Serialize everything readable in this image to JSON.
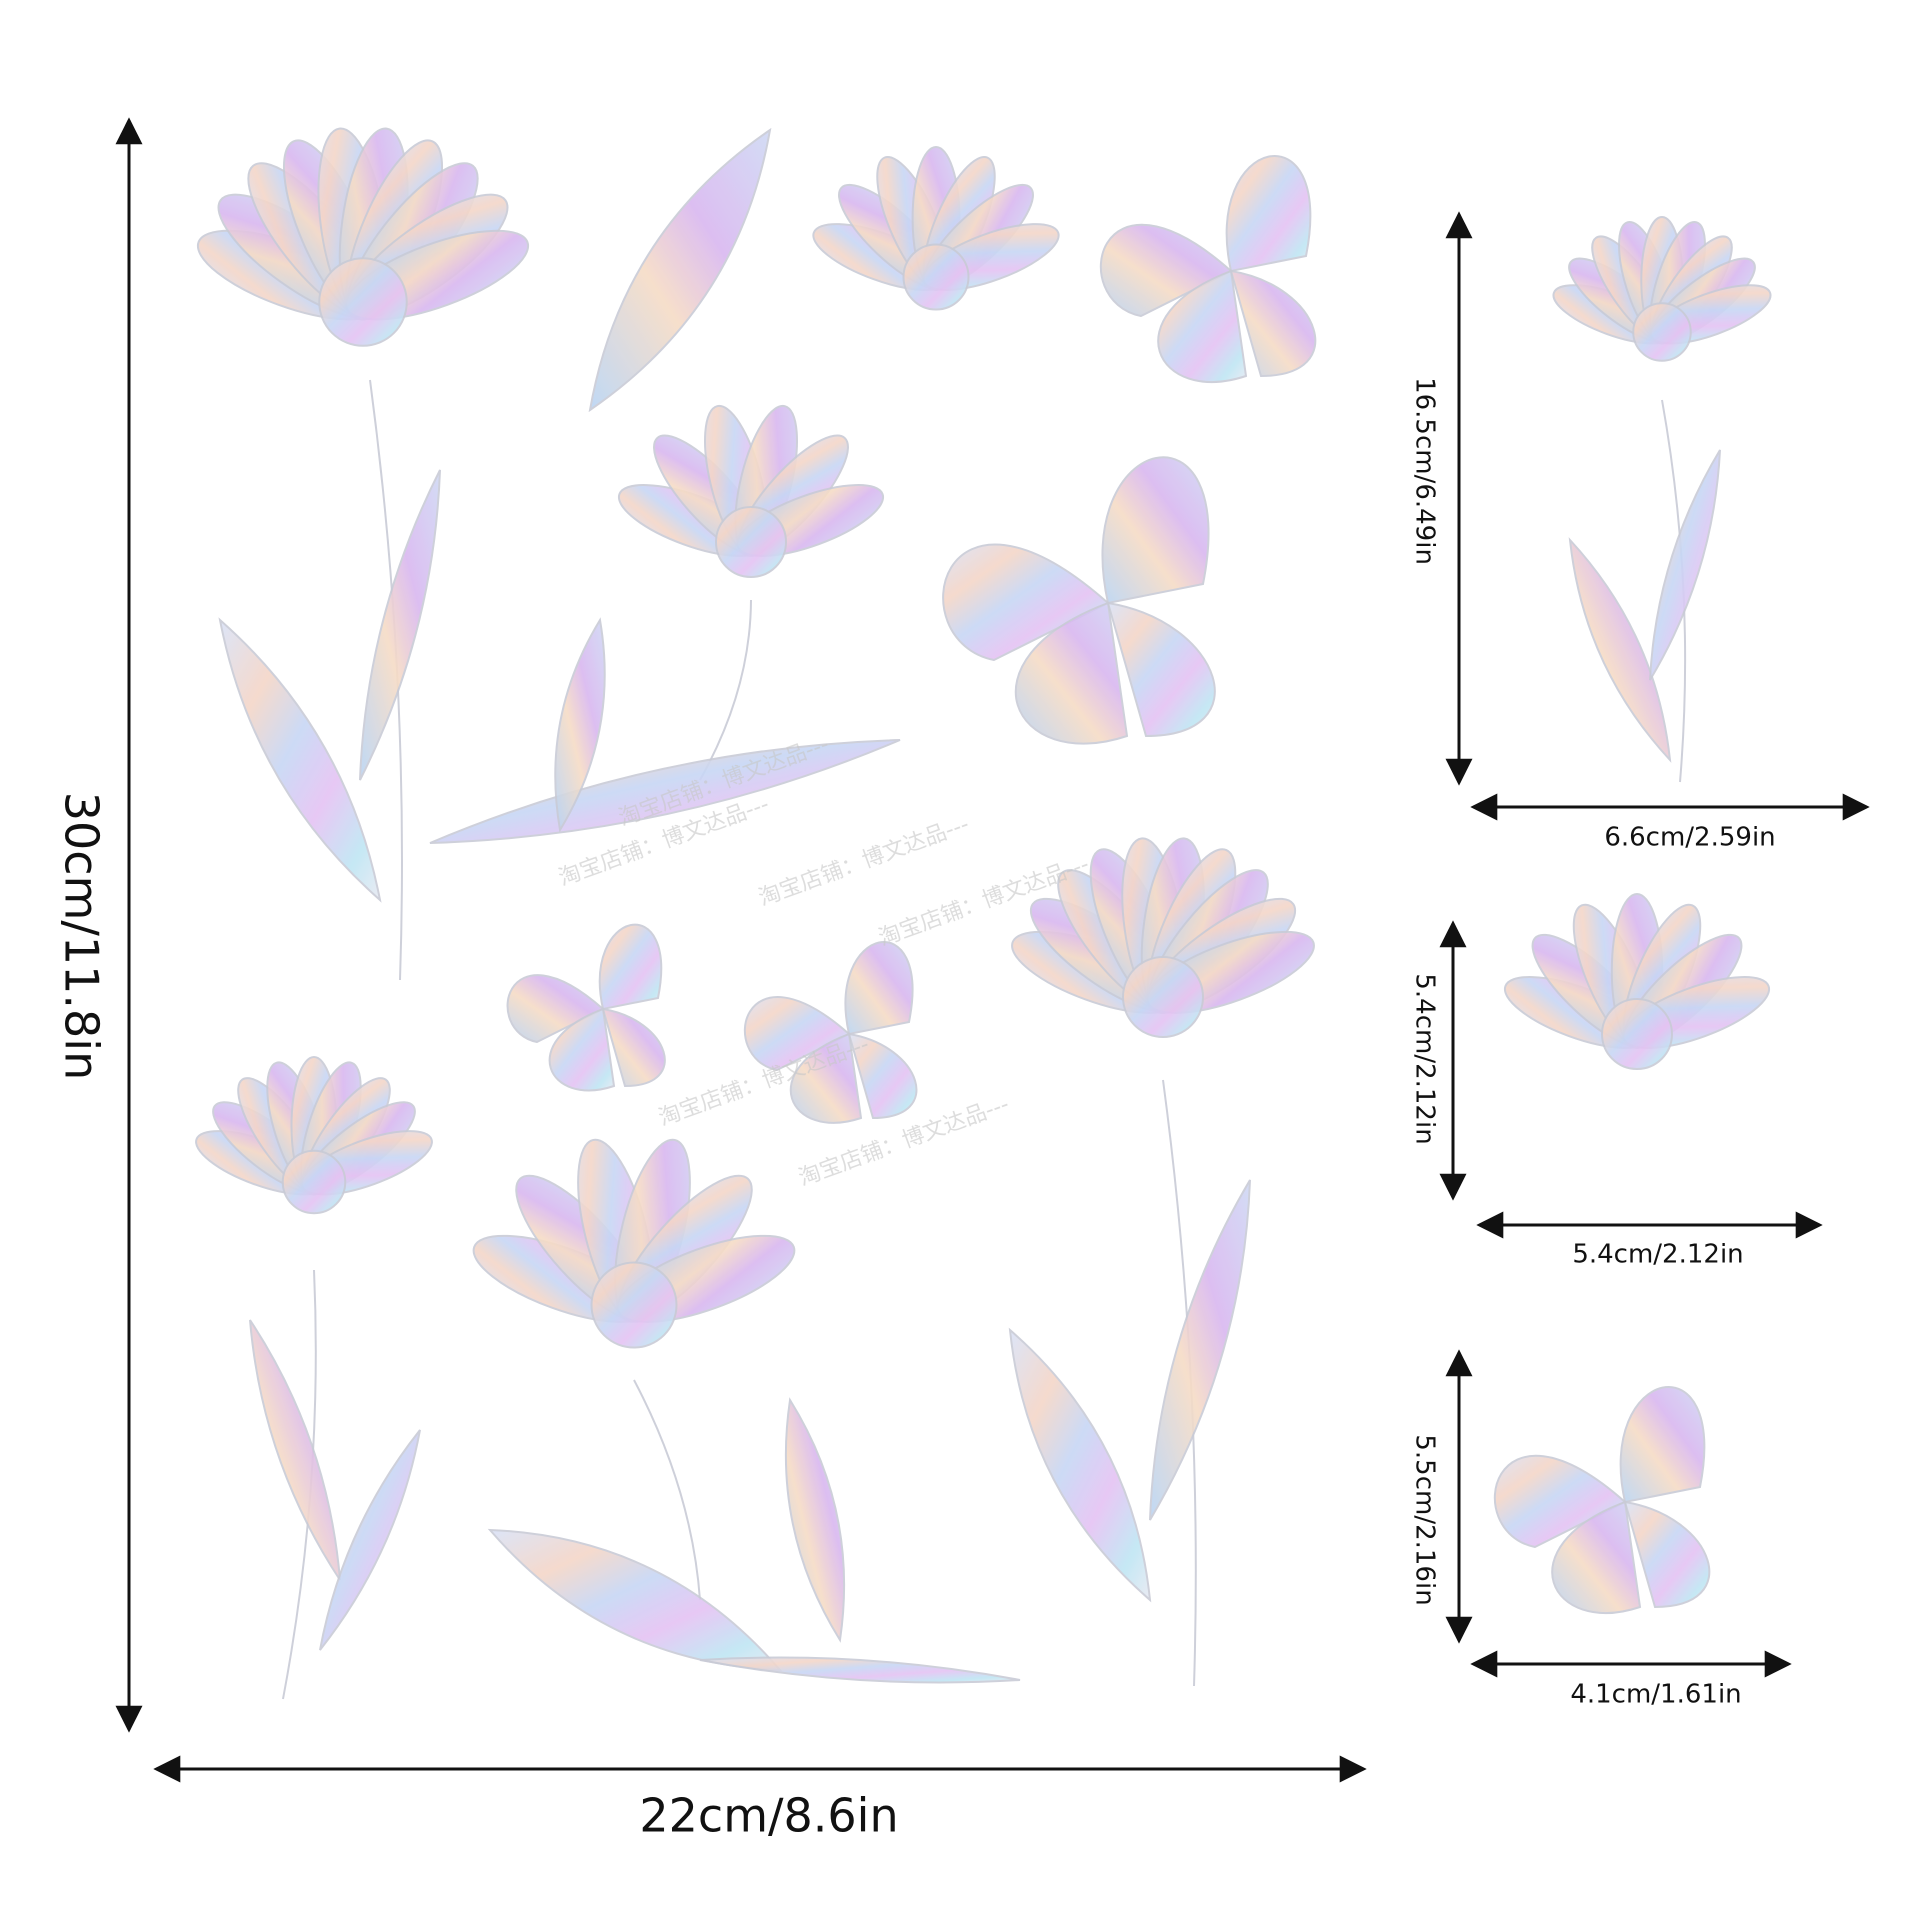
{
  "product": {
    "main_height": "30cm/11.8in",
    "main_width": "22cm/8.6in",
    "items": [
      {
        "height": "16.5cm/6.49in",
        "width": "6.6cm/2.59in"
      },
      {
        "height": "5.4cm/2.12in",
        "width": "5.4cm/2.12in"
      },
      {
        "height": "5.5cm/2.16in",
        "width": "4.1cm/1.61in"
      }
    ],
    "watermark": "淘宝店铺：博文达品---"
  }
}
